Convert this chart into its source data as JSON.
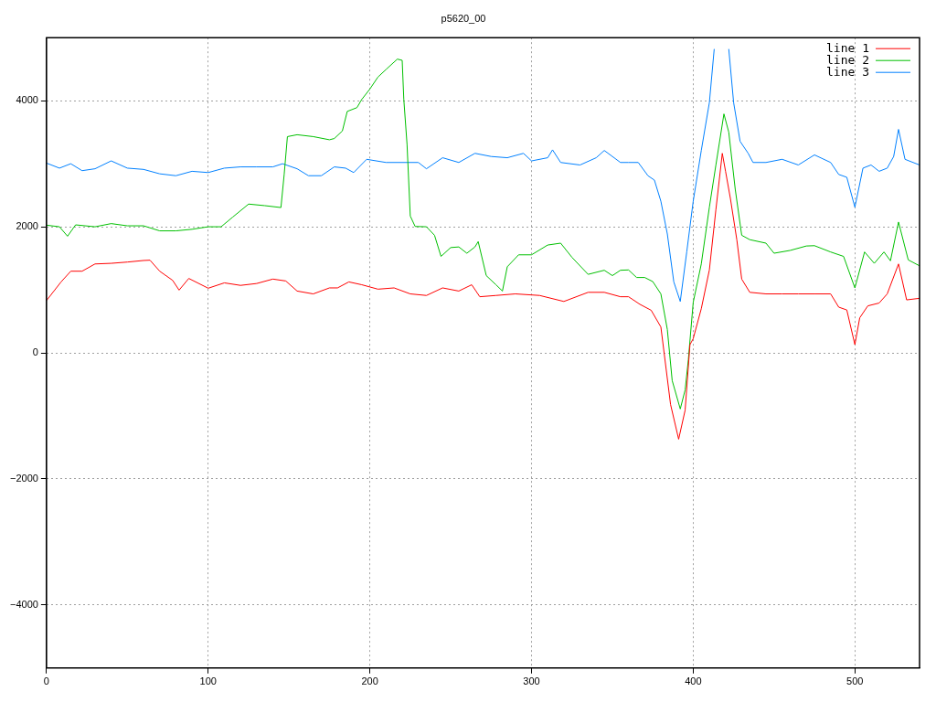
{
  "chart_data": {
    "type": "line",
    "title": "p5620_00",
    "xlim": [
      0,
      540
    ],
    "ylim": [
      -5000,
      5000
    ],
    "xticks": [
      0,
      100,
      200,
      300,
      400,
      500
    ],
    "yticks": [
      -4000,
      -2000,
      0,
      2000,
      4000
    ],
    "grid": true,
    "legend": "top right",
    "marker": "none",
    "line_style": "solid",
    "series": [
      {
        "name": "line 1",
        "color": "#ff0000",
        "x": [
          0,
          9,
          15,
          22,
          30,
          40,
          50,
          60,
          64,
          70,
          78,
          82,
          88,
          100,
          110,
          120,
          130,
          140,
          148,
          155,
          165,
          175,
          180,
          187,
          195,
          205,
          215,
          225,
          235,
          245,
          255,
          263,
          268,
          278,
          290,
          305,
          320,
          335,
          345,
          355,
          360,
          367,
          374,
          380,
          386,
          391,
          395,
          398,
          400,
          405,
          410,
          414,
          418,
          420,
          423,
          427,
          430,
          435,
          445,
          455,
          465,
          475,
          485,
          490,
          495,
          500,
          503,
          508,
          515,
          520,
          527,
          532,
          540
        ],
        "values": [
          830,
          1125,
          1295,
          1295,
          1410,
          1420,
          1440,
          1465,
          1470,
          1295,
          1150,
          995,
          1180,
          1025,
          1110,
          1070,
          1100,
          1170,
          1140,
          980,
          935,
          1030,
          1030,
          1125,
          1080,
          1010,
          1030,
          935,
          910,
          1030,
          980,
          1080,
          890,
          910,
          935,
          910,
          815,
          960,
          960,
          890,
          890,
          770,
          675,
          410,
          -820,
          -1370,
          -910,
          130,
          225,
          700,
          1315,
          2265,
          3165,
          2880,
          2450,
          1790,
          1170,
          960,
          935,
          935,
          935,
          935,
          935,
          725,
          680,
          130,
          555,
          745,
          790,
          935,
          1410,
          840,
          865
        ]
      },
      {
        "name": "line 2",
        "color": "#00c000",
        "x": [
          0,
          8,
          13,
          18,
          30,
          40,
          50,
          60,
          70,
          80,
          90,
          100,
          108,
          115,
          125,
          135,
          145,
          147,
          149,
          155,
          165,
          175,
          178,
          183,
          186,
          192,
          195,
          200,
          205,
          210,
          217,
          220,
          221,
          223,
          225,
          228,
          235,
          240,
          244,
          250,
          255,
          260,
          265,
          267,
          272,
          278,
          282,
          285,
          292,
          300,
          310,
          318,
          325,
          335,
          345,
          350,
          355,
          360,
          365,
          370,
          375,
          380,
          384,
          387,
          392,
          395,
          397,
          400,
          405,
          410,
          414,
          419,
          422,
          426,
          430,
          435,
          445,
          450,
          460,
          470,
          475,
          485,
          493,
          500,
          506,
          512,
          518,
          522,
          527,
          533,
          540
        ],
        "values": [
          2025,
          2000,
          1850,
          2030,
          2000,
          2050,
          2015,
          2015,
          1935,
          1935,
          1960,
          2000,
          2000,
          2150,
          2360,
          2335,
          2305,
          2830,
          3430,
          3460,
          3430,
          3380,
          3400,
          3520,
          3830,
          3890,
          4020,
          4185,
          4375,
          4495,
          4660,
          4640,
          4020,
          3305,
          2170,
          2005,
          2000,
          1865,
          1530,
          1670,
          1680,
          1580,
          1680,
          1765,
          1225,
          1080,
          980,
          1365,
          1555,
          1555,
          1710,
          1740,
          1515,
          1245,
          1310,
          1225,
          1310,
          1315,
          1195,
          1195,
          1130,
          935,
          370,
          -440,
          -890,
          -590,
          -110,
          800,
          1410,
          2310,
          2975,
          3790,
          3500,
          2595,
          1865,
          1795,
          1740,
          1580,
          1625,
          1695,
          1700,
          1600,
          1530,
          1030,
          1600,
          1420,
          1600,
          1460,
          2075,
          1475,
          1380
        ]
      },
      {
        "name": "line 3",
        "color": "#0080ff",
        "x": [
          0,
          8,
          15,
          22,
          30,
          40,
          50,
          60,
          70,
          80,
          90,
          100,
          110,
          120,
          130,
          140,
          146,
          155,
          162,
          170,
          178,
          185,
          190,
          198,
          210,
          220,
          230,
          235,
          245,
          255,
          265,
          275,
          285,
          295,
          300,
          310,
          313,
          318,
          330,
          340,
          345,
          355,
          360,
          366,
          372,
          376,
          380,
          384,
          388,
          392,
          396,
          400,
          405,
          410,
          413,
          417,
          422,
          425,
          429,
          434,
          437,
          445,
          455,
          465,
          475,
          485,
          490,
          495,
          500,
          505,
          510,
          515,
          520,
          524,
          527,
          531,
          540
        ],
        "values": [
          3010,
          2930,
          3000,
          2890,
          2920,
          3045,
          2930,
          2910,
          2840,
          2810,
          2880,
          2860,
          2930,
          2950,
          2950,
          2950,
          3000,
          2920,
          2810,
          2810,
          2950,
          2930,
          2860,
          3070,
          3020,
          3020,
          3020,
          2920,
          3095,
          3020,
          3165,
          3115,
          3095,
          3165,
          3045,
          3095,
          3220,
          3020,
          2980,
          3095,
          3210,
          3020,
          3020,
          3020,
          2810,
          2740,
          2405,
          1885,
          1125,
          815,
          1600,
          2405,
          3210,
          3970,
          4820,
          null,
          4820,
          3970,
          3355,
          3165,
          3020,
          3020,
          3070,
          2980,
          3140,
          3020,
          2830,
          2785,
          2310,
          2930,
          2980,
          2880,
          2930,
          3115,
          3545,
          3070,
          2980
        ]
      }
    ]
  }
}
